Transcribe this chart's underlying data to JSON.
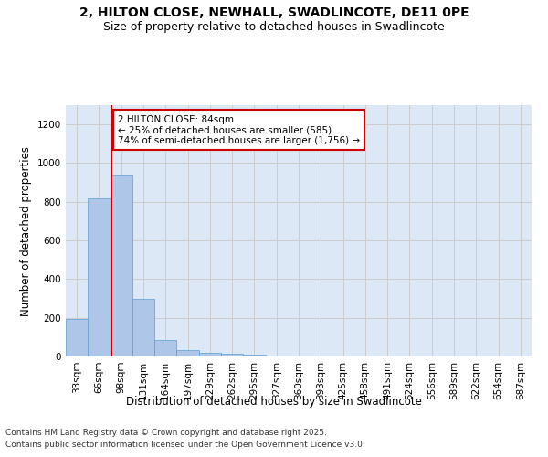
{
  "title_line1": "2, HILTON CLOSE, NEWHALL, SWADLINCOTE, DE11 0PE",
  "title_line2": "Size of property relative to detached houses in Swadlincote",
  "xlabel": "Distribution of detached houses by size in Swadlincote",
  "ylabel": "Number of detached properties",
  "categories": [
    "33sqm",
    "66sqm",
    "98sqm",
    "131sqm",
    "164sqm",
    "197sqm",
    "229sqm",
    "262sqm",
    "295sqm",
    "327sqm",
    "360sqm",
    "393sqm",
    "425sqm",
    "458sqm",
    "491sqm",
    "524sqm",
    "556sqm",
    "589sqm",
    "622sqm",
    "654sqm",
    "687sqm"
  ],
  "values": [
    195,
    820,
    935,
    300,
    85,
    35,
    20,
    13,
    8,
    0,
    0,
    0,
    0,
    0,
    0,
    0,
    0,
    0,
    0,
    0,
    0
  ],
  "bar_color": "#aec6e8",
  "bar_edge_color": "#5a9fd4",
  "grid_color": "#cccccc",
  "background_color": "#dce8f5",
  "property_line_x": 1.55,
  "annotation_text": "2 HILTON CLOSE: 84sqm\n← 25% of detached houses are smaller (585)\n74% of semi-detached houses are larger (1,756) →",
  "annotation_box_color": "#ffffff",
  "annotation_box_edge_color": "#cc0000",
  "red_line_color": "#cc0000",
  "ylim": [
    0,
    1300
  ],
  "yticks": [
    0,
    200,
    400,
    600,
    800,
    1000,
    1200
  ],
  "footer_line1": "Contains HM Land Registry data © Crown copyright and database right 2025.",
  "footer_line2": "Contains public sector information licensed under the Open Government Licence v3.0.",
  "title_fontsize": 10,
  "subtitle_fontsize": 9,
  "axis_label_fontsize": 8.5,
  "tick_fontsize": 7.5,
  "annotation_fontsize": 7.5,
  "footer_fontsize": 6.5
}
